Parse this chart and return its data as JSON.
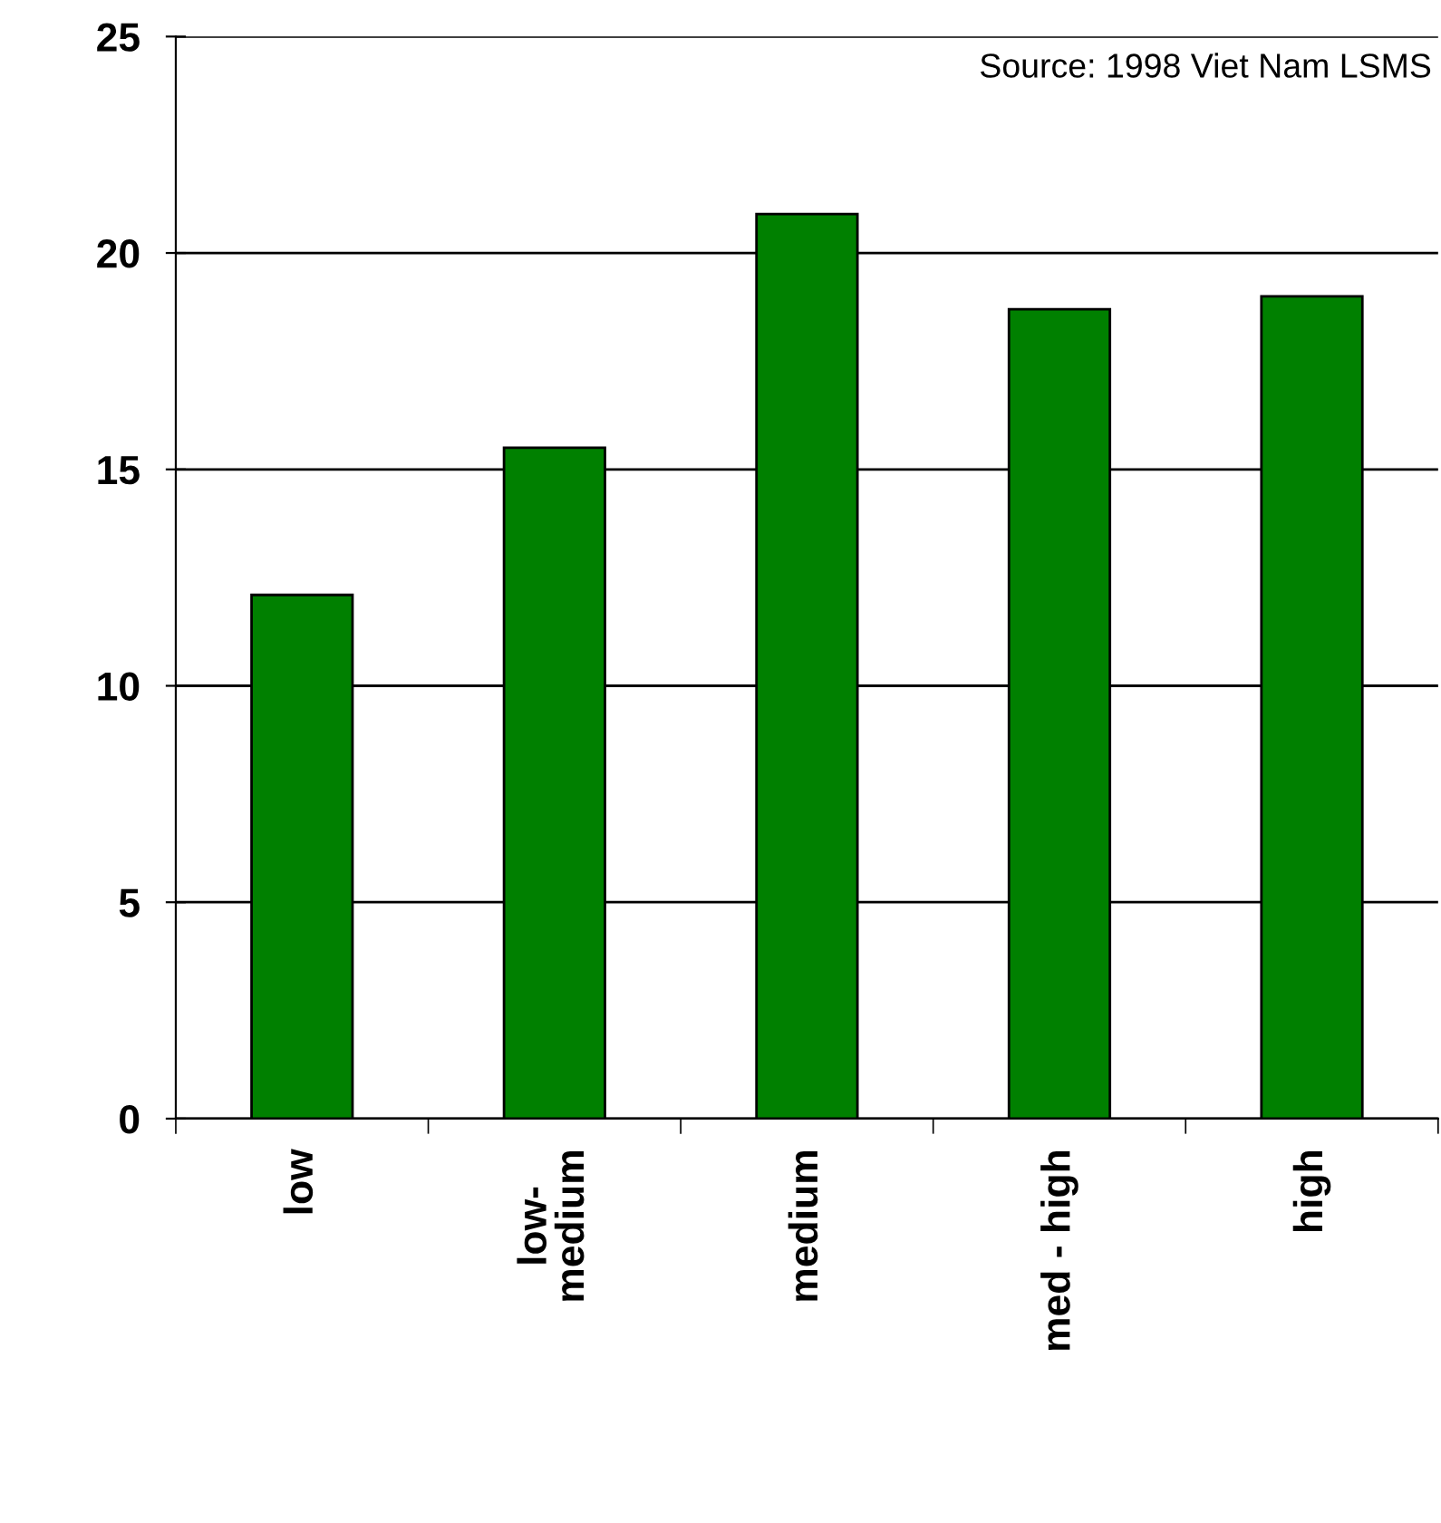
{
  "chart_data": {
    "type": "bar",
    "categories": [
      "low",
      "low-\nmedium",
      "medium",
      "med - high",
      "high"
    ],
    "values": [
      12.1,
      15.5,
      20.9,
      18.7,
      19.0
    ],
    "color": "#008000",
    "ylim": [
      0,
      25
    ],
    "yticks": [
      0,
      5,
      10,
      15,
      20,
      25
    ],
    "grid": "y",
    "annotations": [
      "Source: 1998 Viet Nam LSMS"
    ]
  }
}
